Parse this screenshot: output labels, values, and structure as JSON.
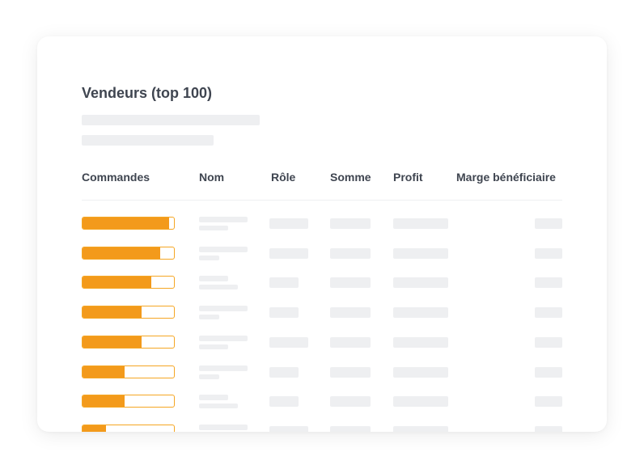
{
  "panel": {
    "title": "Vendeurs (top 100)"
  },
  "table": {
    "columns": [
      {
        "key": "commandes",
        "label": "Commandes"
      },
      {
        "key": "nom",
        "label": "Nom"
      },
      {
        "key": "role",
        "label": "Rôle"
      },
      {
        "key": "somme",
        "label": "Somme"
      },
      {
        "key": "profit",
        "label": "Profit"
      },
      {
        "key": "marge",
        "label": "Marge bénéficiaire"
      }
    ],
    "rows": [
      {
        "orders_fraction": 0.95
      },
      {
        "orders_fraction": 0.85
      },
      {
        "orders_fraction": 0.75
      },
      {
        "orders_fraction": 0.65
      },
      {
        "orders_fraction": 0.65
      },
      {
        "orders_fraction": 0.46
      },
      {
        "orders_fraction": 0.46
      },
      {
        "orders_fraction": 0.26
      }
    ]
  },
  "colors": {
    "accent": "#f39a1b",
    "accent_border": "#f5a623",
    "placeholder": "#eeeff1",
    "text": "#3f4550"
  }
}
